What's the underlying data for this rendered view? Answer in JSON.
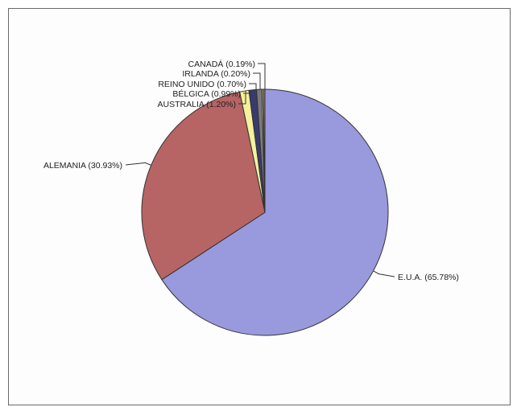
{
  "chart_data": {
    "type": "pie",
    "title": "",
    "slices": [
      {
        "label": "E.U.A. (65.78%)",
        "value": 65.78,
        "color": "#9999dd"
      },
      {
        "label": "ALEMANIA (30.93%)",
        "value": 30.93,
        "color": "#b76464"
      },
      {
        "label": "AUSTRALIA (1.20%)",
        "value": 1.2,
        "color": "#f4f29a"
      },
      {
        "label": "BÉLGICA (0.99%)",
        "value": 0.99,
        "color": "#3a3a6e"
      },
      {
        "label": "REINO UNIDO (0.70%)",
        "value": 0.7,
        "color": "#7a7a7a"
      },
      {
        "label": "IRLANDA (0.20%)",
        "value": 0.2,
        "color": "#d4d4a8"
      },
      {
        "label": "CANADÁ (0.19%)",
        "value": 0.19,
        "color": "#b08080"
      }
    ],
    "legend": "none"
  }
}
